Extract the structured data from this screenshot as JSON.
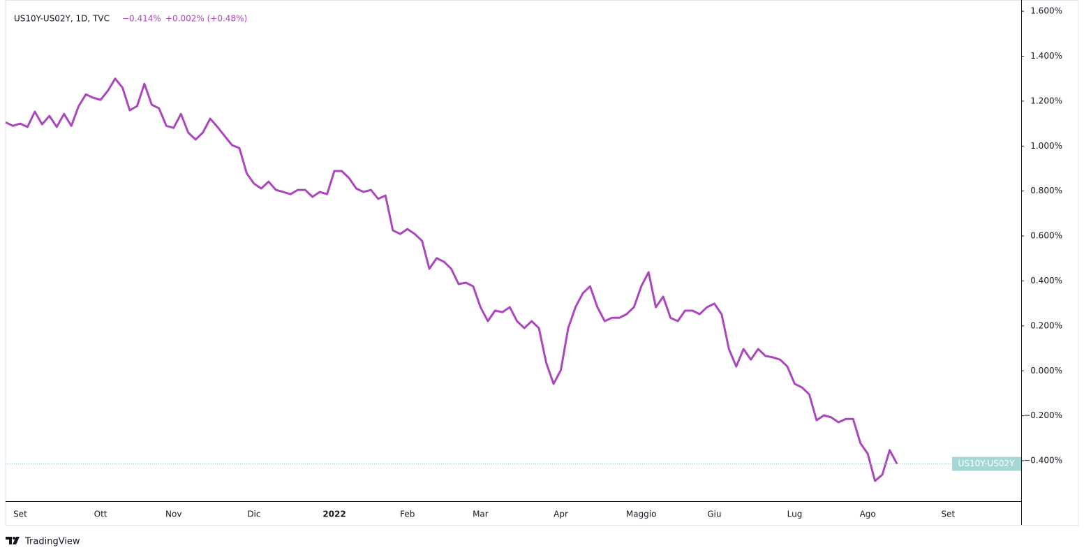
{
  "chart_data": {
    "type": "line",
    "header": {
      "symbol": "US10Y-US02Y, 1D, TVC",
      "last": "−0.414%",
      "change": "+0.002% (+0.48%)"
    },
    "branding": "TradingView",
    "categories": [
      null,
      null,
      "Set",
      null,
      null,
      null,
      null,
      null,
      null,
      null,
      null,
      null,
      null,
      "Ott",
      null,
      null,
      null,
      null,
      null,
      null,
      null,
      null,
      null,
      "Nov",
      null,
      null,
      null,
      null,
      null,
      null,
      null,
      null,
      null,
      null,
      "Dic",
      null,
      null,
      null,
      null,
      null,
      null,
      null,
      null,
      null,
      null,
      "2022",
      null,
      null,
      null,
      null,
      null,
      null,
      null,
      null,
      null,
      "Feb",
      null,
      null,
      null,
      null,
      null,
      null,
      null,
      null,
      null,
      "Mar",
      null,
      null,
      null,
      null,
      null,
      null,
      null,
      null,
      null,
      null,
      "Apr",
      null,
      null,
      null,
      null,
      null,
      null,
      null,
      null,
      null,
      null,
      "Maggio",
      null,
      null,
      null,
      null,
      null,
      null,
      null,
      null,
      null,
      "Giu",
      null,
      null,
      null,
      null,
      null,
      null,
      null,
      null,
      null,
      null,
      "Lug",
      null,
      null,
      null,
      null,
      null,
      null,
      null,
      null,
      null,
      "Ago",
      null,
      null,
      null,
      null,
      null,
      null,
      null,
      null,
      null,
      null,
      "Set",
      null,
      null,
      null,
      null,
      null,
      null,
      null,
      null,
      null
    ],
    "series": [
      {
        "name": "US10Y-US02Y",
        "color": "#ab47bc",
        "values": [
          1.106,
          1.09,
          1.1,
          1.085,
          1.153,
          1.097,
          1.134,
          1.085,
          1.143,
          1.09,
          1.178,
          1.23,
          1.215,
          1.206,
          1.246,
          1.3,
          1.26,
          1.159,
          1.178,
          1.277,
          1.184,
          1.168,
          1.09,
          1.081,
          1.143,
          1.06,
          1.029,
          1.06,
          1.122,
          1.085,
          1.044,
          1.004,
          0.991,
          0.879,
          0.833,
          0.811,
          0.842,
          0.805,
          0.796,
          0.786,
          0.805,
          0.805,
          0.774,
          0.796,
          0.786,
          0.889,
          0.889,
          0.858,
          0.811,
          0.796,
          0.805,
          0.765,
          0.78,
          0.625,
          0.609,
          0.631,
          0.609,
          0.578,
          0.454,
          0.501,
          0.485,
          0.454,
          0.386,
          0.392,
          0.376,
          0.283,
          0.221,
          0.268,
          0.261,
          0.283,
          0.221,
          0.19,
          0.221,
          0.19,
          0.035,
          -0.058,
          0.003,
          0.19,
          0.283,
          0.345,
          0.376,
          0.283,
          0.221,
          0.236,
          0.236,
          0.252,
          0.283,
          0.376,
          0.439,
          0.283,
          0.33,
          0.236,
          0.221,
          0.268,
          0.268,
          0.252,
          0.283,
          0.299,
          0.252,
          0.097,
          0.019,
          0.097,
          0.05,
          0.097,
          0.066,
          0.06,
          0.05,
          0.019,
          -0.058,
          -0.074,
          -0.105,
          -0.22,
          -0.198,
          -0.207,
          -0.229,
          -0.214,
          -0.214,
          -0.322,
          -0.369,
          -0.49,
          -0.462,
          -0.353,
          -0.414,
          null,
          null,
          null,
          null,
          null,
          null,
          null,
          null,
          null,
          null,
          null,
          null,
          null,
          null,
          null,
          null
        ]
      }
    ],
    "ylim": [
      -0.58,
      1.65
    ],
    "yticks": [
      {
        "value": 1.6,
        "label": "1.600%"
      },
      {
        "value": 1.4,
        "label": "1.400%"
      },
      {
        "value": 1.2,
        "label": "1.200%"
      },
      {
        "value": 1.0,
        "label": "1.000%"
      },
      {
        "value": 0.8,
        "label": "0.800%"
      },
      {
        "value": 0.6,
        "label": "0.600%"
      },
      {
        "value": 0.4,
        "label": "0.400%"
      },
      {
        "value": 0.2,
        "label": "0.200%"
      },
      {
        "value": 0,
        "label": "0.000%"
      },
      {
        "value": -0.2,
        "label": "−0.200%"
      },
      {
        "value": -0.4,
        "label": "−0.400%"
      }
    ],
    "grid": false
  }
}
